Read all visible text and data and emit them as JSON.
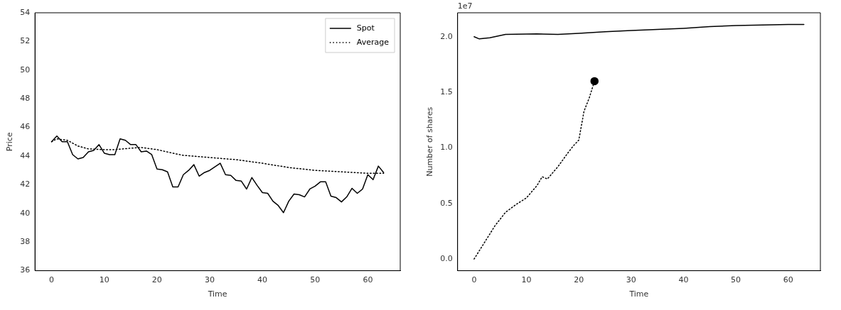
{
  "chart_data": [
    {
      "type": "line",
      "xlabel": "Time",
      "ylabel": "Price",
      "xlim": [
        -3.15,
        66.15
      ],
      "xticks": [
        0,
        10,
        20,
        30,
        40,
        50,
        60
      ],
      "ylim": [
        36,
        54
      ],
      "yticks": [
        36,
        38,
        40,
        42,
        44,
        46,
        48,
        50,
        52,
        54
      ],
      "legend": "top right",
      "series": [
        {
          "name": "Spot",
          "color": "#000000",
          "line_style": "solid",
          "x": [
            0,
            1,
            2,
            3,
            4,
            5,
            6,
            7,
            8,
            9,
            10,
            11,
            12,
            13,
            14,
            15,
            16,
            17,
            18,
            19,
            20,
            21,
            22,
            23,
            24,
            25,
            26,
            27,
            28,
            29,
            30,
            31,
            32,
            33,
            34,
            35,
            36,
            37,
            38,
            39,
            40,
            41,
            42,
            43,
            44,
            45,
            46,
            47,
            48,
            49,
            50,
            51,
            52,
            53,
            54,
            55,
            56,
            57,
            58,
            59,
            60,
            61,
            62,
            63
          ],
          "values": [
            45.0,
            45.4,
            45.0,
            45.0,
            44.1,
            43.8,
            43.9,
            44.3,
            44.4,
            44.8,
            44.2,
            44.1,
            44.1,
            45.2,
            45.1,
            44.8,
            44.8,
            44.3,
            44.35,
            44.1,
            43.1,
            43.05,
            42.9,
            41.85,
            41.85,
            42.7,
            43.0,
            43.4,
            42.6,
            42.85,
            43.0,
            43.25,
            43.5,
            42.7,
            42.65,
            42.3,
            42.25,
            41.7,
            42.5,
            41.95,
            41.45,
            41.4,
            40.85,
            40.55,
            40.05,
            40.85,
            41.35,
            41.3,
            41.15,
            41.7,
            41.9,
            42.2,
            42.2,
            41.2,
            41.1,
            40.8,
            41.15,
            41.75,
            41.4,
            41.7,
            42.7,
            42.35,
            43.3,
            42.85
          ]
        },
        {
          "name": "Average",
          "color": "#000000",
          "line_style": "dotted",
          "x": [
            0,
            1,
            3,
            5,
            7,
            10,
            12,
            15,
            17,
            20,
            23,
            25,
            30,
            35,
            40,
            45,
            50,
            55,
            60,
            63
          ],
          "values": [
            45.0,
            45.2,
            45.1,
            44.7,
            44.5,
            44.45,
            44.45,
            44.55,
            44.6,
            44.45,
            44.2,
            44.05,
            43.9,
            43.75,
            43.5,
            43.2,
            43.0,
            42.9,
            42.8,
            42.8
          ]
        }
      ]
    },
    {
      "type": "line",
      "xlabel": "Time",
      "ylabel": "Number of shares",
      "annotations": [
        "1e7"
      ],
      "xlim": [
        -3.15,
        66.15
      ],
      "xticks": [
        0,
        10,
        20,
        30,
        40,
        50,
        60
      ],
      "ylim": [
        -0.105,
        2.215
      ],
      "yticks": [
        {
          "value": 0,
          "label": "0.0"
        },
        {
          "value": 0.5,
          "label": "0.5"
        },
        {
          "value": 1,
          "label": "1.0"
        },
        {
          "value": 1.5,
          "label": "1.5"
        },
        {
          "value": 2,
          "label": "2.0"
        }
      ],
      "series": [
        {
          "color": "#000000",
          "line_style": "solid",
          "x": [
            0,
            1,
            3,
            6,
            12,
            16,
            20,
            25,
            30,
            35,
            40,
            45,
            50,
            55,
            60,
            63
          ],
          "values": [
            2.0,
            1.98,
            1.99,
            2.02,
            2.025,
            2.02,
            2.03,
            2.045,
            2.055,
            2.065,
            2.075,
            2.09,
            2.1,
            2.105,
            2.11,
            2.11
          ]
        },
        {
          "color": "#000000",
          "line_style": "dotted",
          "x": [
            0,
            2,
            4,
            6,
            8,
            10,
            12,
            13,
            14,
            16,
            18,
            19,
            20,
            21,
            22,
            23
          ],
          "values": [
            0,
            0.15,
            0.3,
            0.42,
            0.49,
            0.55,
            0.66,
            0.74,
            0.72,
            0.83,
            0.96,
            1.02,
            1.07,
            1.33,
            1.45,
            1.6
          ]
        },
        {
          "type": "scatter",
          "color": "#000000",
          "marker": "circle",
          "x": [
            23
          ],
          "values": [
            1.6
          ]
        }
      ]
    }
  ]
}
